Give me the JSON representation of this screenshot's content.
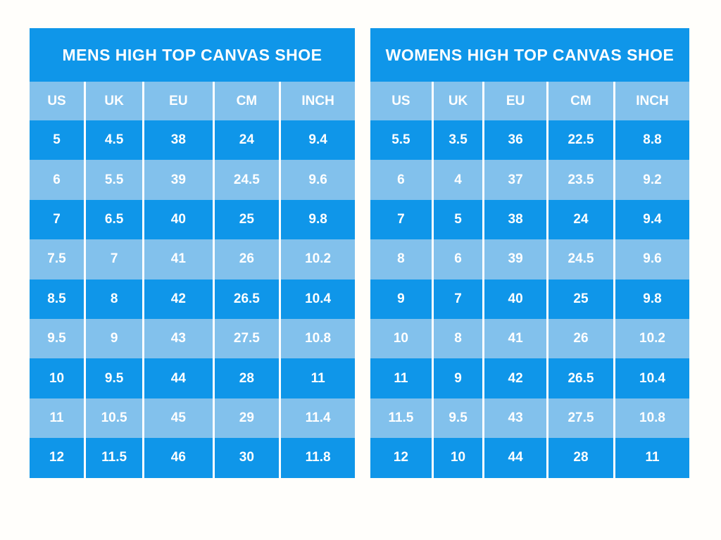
{
  "colors": {
    "primary_blue": "#0f96e9",
    "light_blue": "#82c1ec",
    "text_color": "#ffffff",
    "grid_line": "#ffffff",
    "page_bg": "#fffefb"
  },
  "chart_data": [
    {
      "type": "table",
      "title": "MENS HIGH TOP CANVAS SHOE",
      "columns": [
        "US",
        "UK",
        "EU",
        "CM",
        "INCH"
      ],
      "rows": [
        [
          "5",
          "4.5",
          "38",
          "24",
          "9.4"
        ],
        [
          "6",
          "5.5",
          "39",
          "24.5",
          "9.6"
        ],
        [
          "7",
          "6.5",
          "40",
          "25",
          "9.8"
        ],
        [
          "7.5",
          "7",
          "41",
          "26",
          "10.2"
        ],
        [
          "8.5",
          "8",
          "42",
          "26.5",
          "10.4"
        ],
        [
          "9.5",
          "9",
          "43",
          "27.5",
          "10.8"
        ],
        [
          "10",
          "9.5",
          "44",
          "28",
          "11"
        ],
        [
          "11",
          "10.5",
          "45",
          "29",
          "11.4"
        ],
        [
          "12",
          "11.5",
          "46",
          "30",
          "11.8"
        ]
      ]
    },
    {
      "type": "table",
      "title": "WOMENS HIGH TOP CANVAS SHOE",
      "columns": [
        "US",
        "UK",
        "EU",
        "CM",
        "INCH"
      ],
      "rows": [
        [
          "5.5",
          "3.5",
          "36",
          "22.5",
          "8.8"
        ],
        [
          "6",
          "4",
          "37",
          "23.5",
          "9.2"
        ],
        [
          "7",
          "5",
          "38",
          "24",
          "9.4"
        ],
        [
          "8",
          "6",
          "39",
          "24.5",
          "9.6"
        ],
        [
          "9",
          "7",
          "40",
          "25",
          "9.8"
        ],
        [
          "10",
          "8",
          "41",
          "26",
          "10.2"
        ],
        [
          "11",
          "9",
          "42",
          "26.5",
          "10.4"
        ],
        [
          "11.5",
          "9.5",
          "43",
          "27.5",
          "10.8"
        ],
        [
          "12",
          "10",
          "44",
          "28",
          "11"
        ]
      ]
    }
  ]
}
